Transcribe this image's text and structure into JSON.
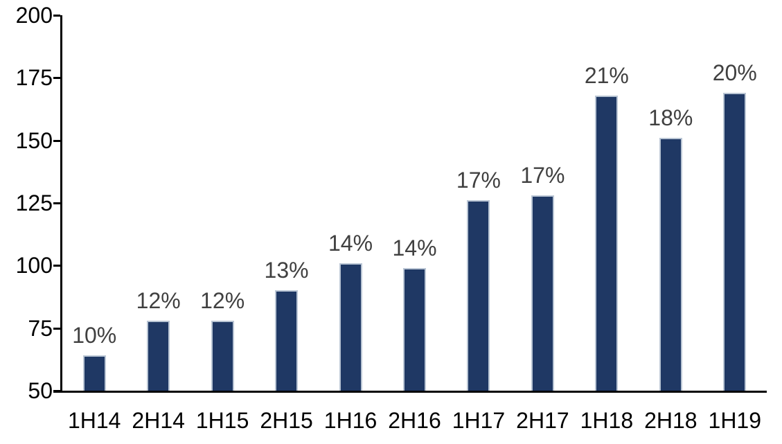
{
  "chart_data": {
    "type": "bar",
    "title": "",
    "xlabel": "",
    "ylabel": "",
    "categories": [
      "1H14",
      "2H14",
      "1H15",
      "2H15",
      "1H16",
      "2H16",
      "1H17",
      "2H17",
      "1H18",
      "2H18",
      "1H19"
    ],
    "values": [
      64,
      78,
      78,
      90,
      101,
      99,
      126,
      128,
      168,
      151,
      169
    ],
    "data_labels": [
      "10%",
      "12%",
      "12%",
      "13%",
      "14%",
      "14%",
      "17%",
      "17%",
      "21%",
      "18%",
      "20%"
    ],
    "ylim": [
      50,
      200
    ],
    "yticks": [
      50,
      75,
      100,
      125,
      150,
      175,
      200
    ],
    "grid": false,
    "legend": "none",
    "colors": {
      "bar_fill": "#1F3864",
      "bar_border": "#B9C5D4",
      "data_label_text": "#404040",
      "axis_text": "#000000",
      "axis_line": "#000000",
      "background": "#FFFFFF"
    }
  }
}
